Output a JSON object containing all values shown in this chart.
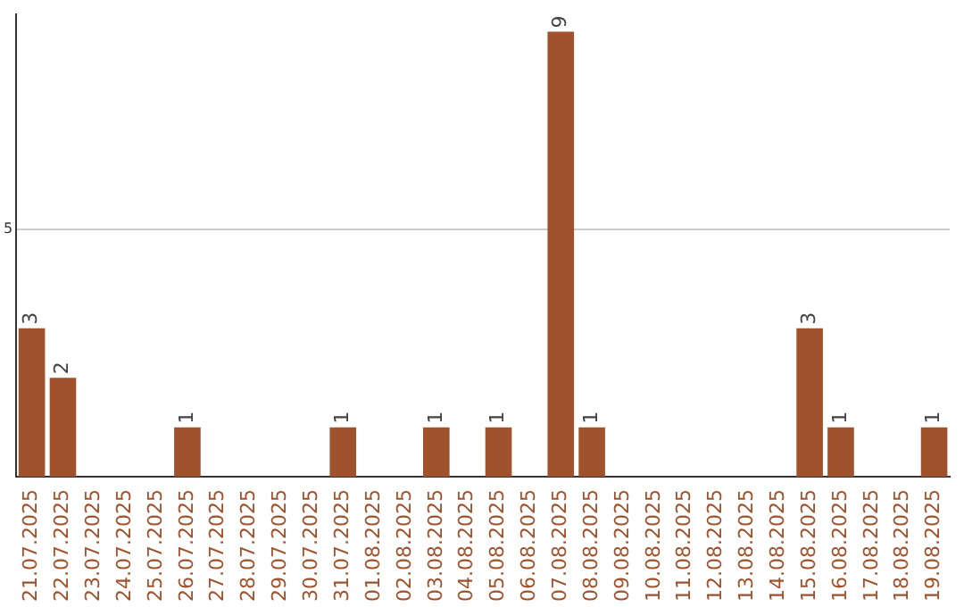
{
  "chart_data": {
    "type": "bar",
    "categories": [
      "21.07.2025",
      "22.07.2025",
      "23.07.2025",
      "24.07.2025",
      "25.07.2025",
      "26.07.2025",
      "27.07.2025",
      "28.07.2025",
      "29.07.2025",
      "30.07.2025",
      "31.07.2025",
      "01.08.2025",
      "02.08.2025",
      "03.08.2025",
      "04.08.2025",
      "05.08.2025",
      "06.08.2025",
      "07.08.2025",
      "08.08.2025",
      "09.08.2025",
      "10.08.2025",
      "11.08.2025",
      "12.08.2025",
      "13.08.2025",
      "14.08.2025",
      "15.08.2025",
      "16.08.2025",
      "17.08.2025",
      "18.08.2025",
      "19.08.2025"
    ],
    "values": [
      3,
      2,
      0,
      0,
      0,
      1,
      0,
      0,
      0,
      0,
      1,
      0,
      0,
      1,
      0,
      1,
      0,
      9,
      1,
      0,
      0,
      0,
      0,
      0,
      0,
      3,
      1,
      0,
      0,
      1
    ],
    "value_labels": [
      "3",
      "2",
      null,
      null,
      null,
      "1",
      null,
      null,
      null,
      null,
      "1",
      null,
      null,
      "1",
      null,
      "1",
      null,
      "9",
      "1",
      null,
      null,
      null,
      null,
      null,
      null,
      "3",
      "1",
      null,
      null,
      "1"
    ],
    "color": "#a0522d",
    "ylim": [
      0,
      9.35
    ],
    "yticks": [
      5
    ],
    "grid": "y",
    "legend": false
  }
}
